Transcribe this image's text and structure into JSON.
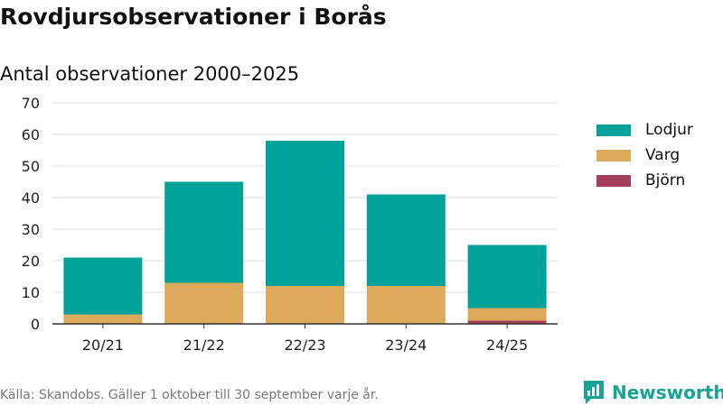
{
  "page": {
    "title": "Rovdjursobservationer i Borås",
    "subtitle": "Antal observationer 2000–2025",
    "source": "Källa: Skandobs. Gäller 1 oktober till 30 september varje år.",
    "brand": "Newsworthy"
  },
  "colors": {
    "Lodjur": "#00a29a",
    "Varg": "#dcaa5a",
    "Björn": "#a33e5b",
    "grid": "#dcdcdc",
    "axis": "#333333",
    "brand": "#18a394"
  },
  "chart_data": {
    "type": "bar",
    "stacked": true,
    "title": "Rovdjursobservationer i Borås",
    "subtitle": "Antal observationer 2000–2025",
    "xlabel": "",
    "ylabel": "",
    "categories": [
      "20/21",
      "21/22",
      "22/23",
      "23/24",
      "24/25"
    ],
    "series": [
      {
        "name": "Björn",
        "values": [
          0,
          0,
          0,
          0,
          1
        ]
      },
      {
        "name": "Varg",
        "values": [
          3,
          13,
          12,
          12,
          4
        ]
      },
      {
        "name": "Lodjur",
        "values": [
          18,
          32,
          46,
          29,
          20
        ]
      }
    ],
    "legend_order": [
      "Lodjur",
      "Varg",
      "Björn"
    ],
    "ylim": [
      0,
      70
    ],
    "yticks": [
      0,
      10,
      20,
      30,
      40,
      50,
      60,
      70
    ],
    "grid": true,
    "legend_position": "right"
  }
}
